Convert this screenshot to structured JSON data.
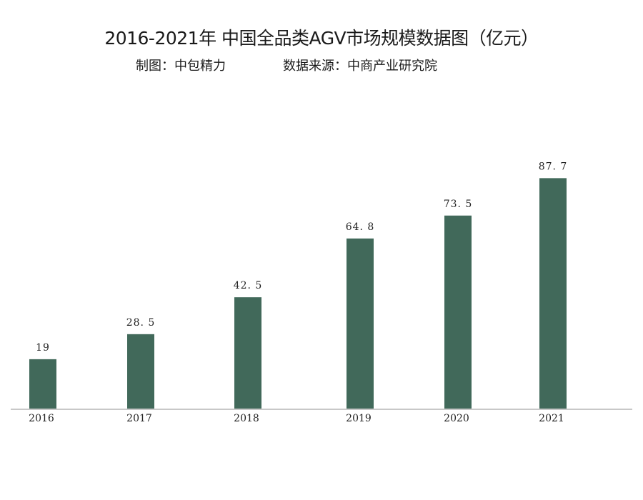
{
  "title": "2016-2021年 中国全品类AGV市场规模数据图（亿元）",
  "subtitle_left": "制图：中包精力",
  "subtitle_right": "数据来源：中商产业研究院",
  "colors": {
    "bar": "#41695a",
    "axis": "#c8c8c8",
    "text": "#222222"
  },
  "chart_data": {
    "type": "bar",
    "title": "2016-2021年 中国全品类AGV市场规模数据图（亿元）",
    "categories": [
      "2016",
      "2017",
      "2018",
      "2019",
      "2020",
      "2021"
    ],
    "values": [
      19,
      28.5,
      42.5,
      64.8,
      73.5,
      87.7
    ],
    "data_labels": [
      "19",
      "28. 5",
      "42. 5",
      "64. 8",
      "73. 5",
      "87. 7"
    ],
    "xlabel": "",
    "ylabel": "",
    "ylim": [
      0,
      95
    ],
    "grid": false,
    "legend": "none"
  }
}
